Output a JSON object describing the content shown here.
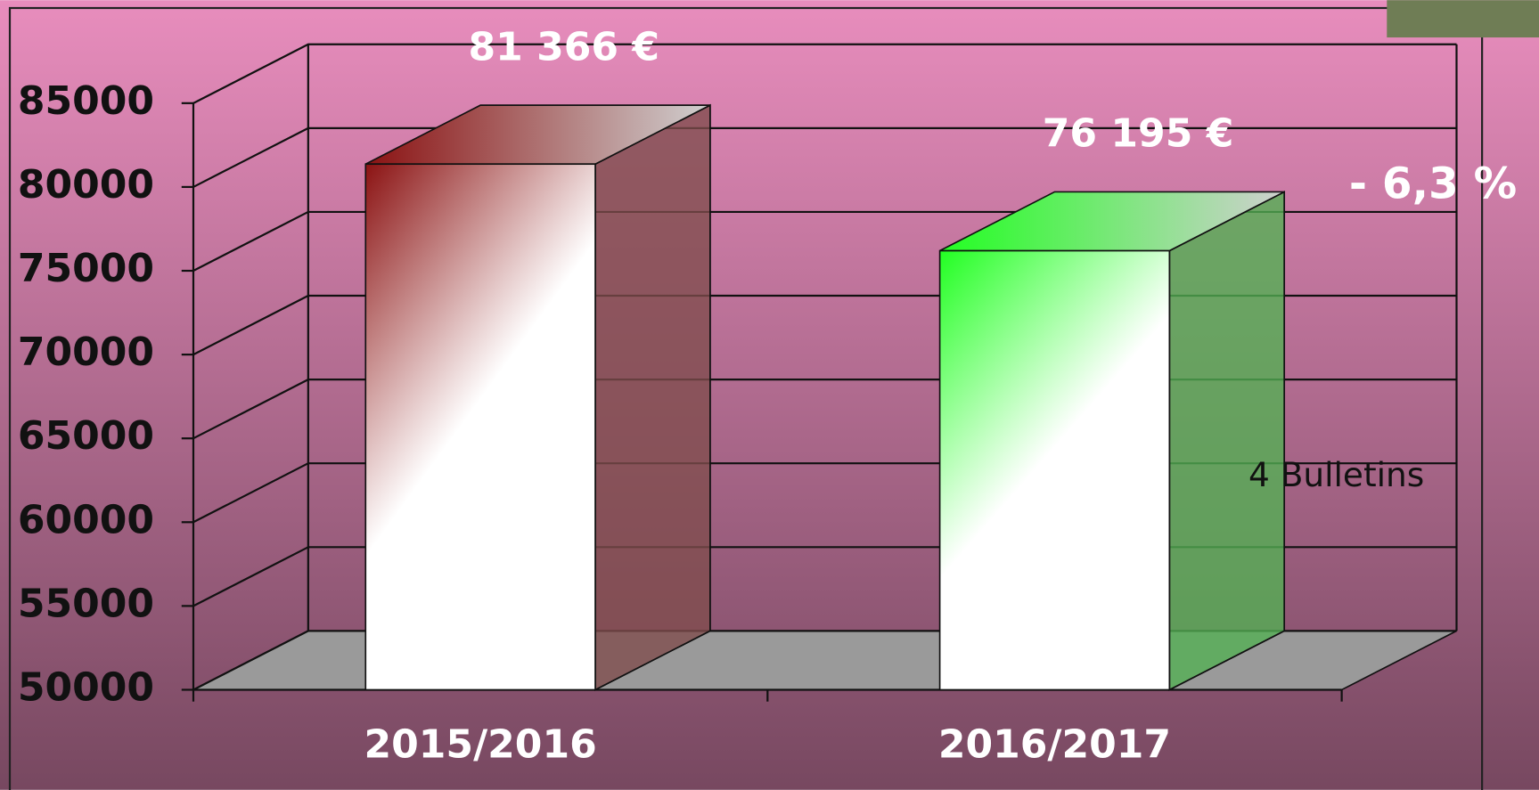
{
  "chart_data": {
    "type": "bar3d",
    "categories": [
      "2015/2016",
      "2016/2017"
    ],
    "values": [
      81366,
      76195
    ],
    "value_labels": [
      "81 366 €",
      "76 195 €"
    ],
    "colors": [
      "#8b1212",
      "#22ff22"
    ],
    "ylim": [
      50000,
      85000
    ],
    "yticks": [
      50000,
      55000,
      60000,
      65000,
      70000,
      75000,
      80000,
      85000
    ],
    "grid": true,
    "annotations": [
      "- 6,3 %",
      "4 Bulletins"
    ]
  }
}
